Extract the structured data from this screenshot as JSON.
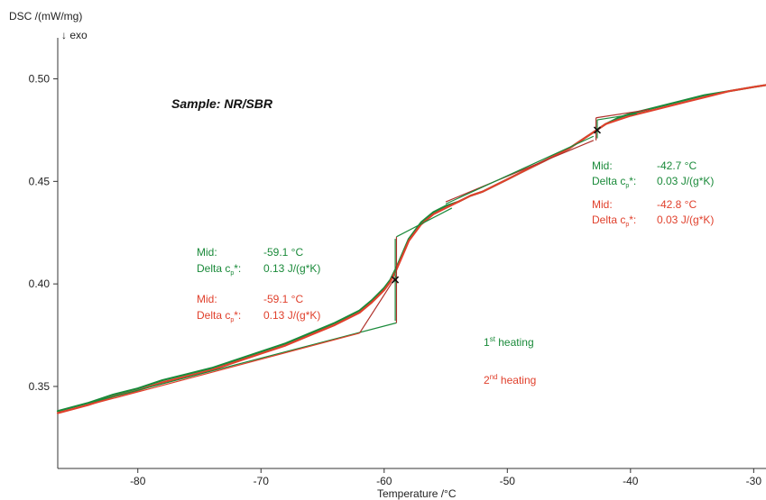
{
  "chart_data": {
    "type": "line",
    "title": "Sample: NR/SBR",
    "xlabel": "Temperature /°C",
    "ylabel": "DSC /(mW/mg)",
    "ylabel_note": "↓ exo",
    "xlim": [
      -86.5,
      -29
    ],
    "ylim": [
      0.31,
      0.52
    ],
    "x_ticks": [
      -80,
      -70,
      -60,
      -50,
      -40,
      -30
    ],
    "y_ticks": [
      0.35,
      0.4,
      0.45,
      0.5
    ],
    "grid": false,
    "colors": {
      "first": "#1a8a3a",
      "second": "#e0402c",
      "construction": "#b0302a",
      "marker": "#111111"
    },
    "series": [
      {
        "name": "1st heating",
        "x": [
          -86.5,
          -84,
          -82,
          -80,
          -78,
          -76,
          -74,
          -72,
          -70,
          -68,
          -66,
          -64,
          -62,
          -61,
          -60.5,
          -60,
          -59.5,
          -59,
          -58.5,
          -58,
          -57,
          -56,
          -55,
          -54,
          -53,
          -52,
          -51,
          -50,
          -49,
          -48,
          -47,
          -46,
          -45,
          -44,
          -43,
          -42,
          -41,
          -40,
          -38,
          -36,
          -34,
          -32,
          -30,
          -29
        ],
        "y": [
          0.338,
          0.342,
          0.346,
          0.349,
          0.353,
          0.356,
          0.359,
          0.363,
          0.367,
          0.371,
          0.376,
          0.381,
          0.387,
          0.392,
          0.395,
          0.398,
          0.402,
          0.408,
          0.415,
          0.422,
          0.43,
          0.435,
          0.438,
          0.44,
          0.443,
          0.445,
          0.448,
          0.451,
          0.454,
          0.457,
          0.46,
          0.463,
          0.466,
          0.47,
          0.474,
          0.478,
          0.481,
          0.483,
          0.486,
          0.489,
          0.492,
          0.494,
          0.496,
          0.497
        ]
      },
      {
        "name": "2nd heating",
        "x": [
          -86.5,
          -84,
          -82,
          -80,
          -78,
          -76,
          -74,
          -72,
          -70,
          -68,
          -66,
          -64,
          -62,
          -61,
          -60.5,
          -60,
          -59.5,
          -59,
          -58.5,
          -58,
          -57,
          -56,
          -55,
          -54,
          -53,
          -52,
          -51,
          -50,
          -49,
          -48,
          -47,
          -46,
          -45,
          -44,
          -43,
          -42,
          -41,
          -40,
          -38,
          -36,
          -34,
          -32,
          -30,
          -29
        ],
        "y": [
          0.337,
          0.341,
          0.345,
          0.348,
          0.352,
          0.355,
          0.358,
          0.362,
          0.366,
          0.37,
          0.375,
          0.38,
          0.386,
          0.391,
          0.394,
          0.397,
          0.401,
          0.407,
          0.414,
          0.421,
          0.429,
          0.434,
          0.437,
          0.44,
          0.443,
          0.445,
          0.448,
          0.451,
          0.454,
          0.457,
          0.46,
          0.463,
          0.466,
          0.47,
          0.474,
          0.478,
          0.48,
          0.482,
          0.485,
          0.488,
          0.491,
          0.494,
          0.496,
          0.497
        ]
      }
    ],
    "construction_lines": [
      {
        "name": "baseline-low-1",
        "color": "first",
        "x": [
          -86.5,
          -59.0
        ],
        "y": [
          0.338,
          0.381
        ]
      },
      {
        "name": "baseline-low-2",
        "color": "second",
        "x": [
          -86.5,
          -62.0
        ],
        "y": [
          0.337,
          0.376
        ]
      },
      {
        "name": "tangent-step-1",
        "color": "construction",
        "x": [
          -62.0,
          -59.0
        ],
        "y": [
          0.376,
          0.404
        ]
      },
      {
        "name": "vertical-step-1",
        "color": "construction",
        "x": [
          -59.0,
          -59.0
        ],
        "y": [
          0.381,
          0.423
        ]
      },
      {
        "name": "vertical-step-2",
        "color": "first",
        "x": [
          -59.1,
          -59.1
        ],
        "y": [
          0.382,
          0.422
        ]
      },
      {
        "name": "baseline-high-1",
        "color": "first",
        "x": [
          -59.0,
          -54.5
        ],
        "y": [
          0.423,
          0.437
        ]
      },
      {
        "name": "step2-tangent-1",
        "color": "construction",
        "x": [
          -55.0,
          -43.0
        ],
        "y": [
          0.44,
          0.47
        ]
      },
      {
        "name": "step2-tangent-2",
        "color": "first",
        "x": [
          -55.0,
          -43.0
        ],
        "y": [
          0.439,
          0.472
        ]
      },
      {
        "name": "step2-vertical-1",
        "color": "construction",
        "x": [
          -42.8,
          -42.8
        ],
        "y": [
          0.47,
          0.481
        ]
      },
      {
        "name": "step2-vertical-2",
        "color": "first",
        "x": [
          -42.7,
          -42.7
        ],
        "y": [
          0.471,
          0.48
        ]
      },
      {
        "name": "step2-upper-1",
        "color": "construction",
        "x": [
          -42.8,
          -38.5
        ],
        "y": [
          0.481,
          0.485
        ]
      },
      {
        "name": "step2-upper-2",
        "color": "first",
        "x": [
          -42.7,
          -39.5
        ],
        "y": [
          0.48,
          0.483
        ]
      }
    ],
    "markers": [
      {
        "name": "midpoint-1",
        "x": -59.1,
        "y": 0.402
      },
      {
        "name": "midpoint-2",
        "x": -42.7,
        "y": 0.475
      }
    ],
    "annotations": {
      "step1_first": {
        "mid_label": "Mid:",
        "mid_value": "-59.1 °C",
        "delta_label": "Delta c",
        "delta_sub": "p",
        "delta_sup": "*:",
        "delta_value": "0.13 J/(g*K)"
      },
      "step1_second": {
        "mid_label": "Mid:",
        "mid_value": "-59.1 °C",
        "delta_label": "Delta c",
        "delta_sub": "p",
        "delta_sup": "*:",
        "delta_value": "0.13 J/(g*K)"
      },
      "step2_first": {
        "mid_label": "Mid:",
        "mid_value": "-42.7 °C",
        "delta_label": "Delta c",
        "delta_sub": "p",
        "delta_sup": "*:",
        "delta_value": "0.03 J/(g*K)"
      },
      "step2_second": {
        "mid_label": "Mid:",
        "mid_value": "-42.8 °C",
        "delta_label": "Delta c",
        "delta_sub": "p",
        "delta_sup": "*:",
        "delta_value": "0.03 J/(g*K)"
      },
      "legend_first": {
        "num": "1",
        "sup": "st",
        "rest": " heating"
      },
      "legend_second": {
        "num": "2",
        "sup": "nd",
        "rest": " heating"
      }
    }
  }
}
